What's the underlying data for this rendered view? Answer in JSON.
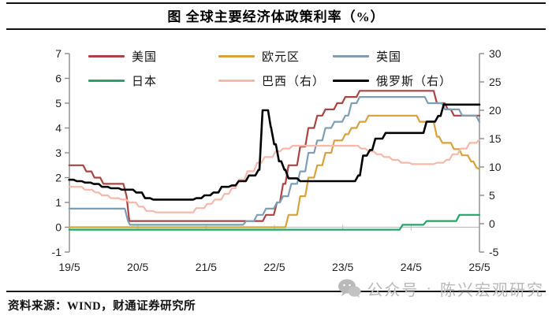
{
  "title": "图 全球主要经济体政策利率（%）",
  "source": "资料来源：WIND，财通证券研究所",
  "watermark": {
    "account_type": "公众号",
    "separator": "·",
    "account_name": "陈兴宏观研究",
    "color": "#b9b9b9"
  },
  "chart_data": {
    "type": "line",
    "title": "全球主要经济体政策利率（%）",
    "legend_position": "top",
    "grid": "zero-line-only",
    "x_axis": {
      "tick_labels": [
        "19/5",
        "20/5",
        "21/5",
        "22/5",
        "23/5",
        "24/5",
        "25/5"
      ],
      "range_years": [
        2019.333,
        2025.333
      ]
    },
    "left_axis": {
      "tick_labels": [
        "7",
        "6",
        "5",
        "4",
        "3",
        "2",
        "1",
        "0",
        "-1"
      ],
      "ticks": [
        7,
        6,
        5,
        4,
        3,
        2,
        1,
        0,
        -1
      ],
      "range": [
        -1,
        7
      ]
    },
    "right_axis": {
      "tick_labels": [
        "30",
        "25",
        "20",
        "15",
        "10",
        "5",
        "0",
        "-5"
      ],
      "ticks": [
        30,
        25,
        20,
        15,
        10,
        5,
        0,
        -5
      ],
      "range": [
        -5,
        30
      ]
    },
    "axis_color": "#8c8c8c",
    "zero_line_color": "#bfbfbf",
    "series": [
      {
        "id": "us",
        "name": "美国",
        "axis": "left",
        "color": "#A94442",
        "points": [
          [
            2019.33,
            2.5
          ],
          [
            2019.58,
            2.25
          ],
          [
            2019.7,
            2.0
          ],
          [
            2019.83,
            1.75
          ],
          [
            2020.17,
            1.25
          ],
          [
            2020.21,
            0.25
          ],
          [
            2022.21,
            0.5
          ],
          [
            2022.37,
            1.0
          ],
          [
            2022.46,
            1.75
          ],
          [
            2022.54,
            2.5
          ],
          [
            2022.71,
            3.25
          ],
          [
            2022.83,
            4.0
          ],
          [
            2022.96,
            4.5
          ],
          [
            2023.08,
            4.75
          ],
          [
            2023.25,
            5.0
          ],
          [
            2023.37,
            5.25
          ],
          [
            2023.58,
            5.5
          ],
          [
            2024.71,
            5.0
          ],
          [
            2024.87,
            4.75
          ],
          [
            2024.96,
            4.5
          ],
          [
            2025.33,
            4.5
          ]
        ]
      },
      {
        "id": "eurozone",
        "name": "欧元区",
        "axis": "left",
        "color": "#D8A13C",
        "points": [
          [
            2019.33,
            0.0
          ],
          [
            2022.54,
            0.5
          ],
          [
            2022.71,
            1.25
          ],
          [
            2022.83,
            2.0
          ],
          [
            2022.96,
            2.5
          ],
          [
            2023.08,
            3.0
          ],
          [
            2023.21,
            3.5
          ],
          [
            2023.37,
            3.75
          ],
          [
            2023.46,
            4.0
          ],
          [
            2023.58,
            4.25
          ],
          [
            2023.71,
            4.5
          ],
          [
            2024.46,
            4.25
          ],
          [
            2024.71,
            3.65
          ],
          [
            2024.79,
            3.4
          ],
          [
            2024.96,
            3.15
          ],
          [
            2025.08,
            2.9
          ],
          [
            2025.21,
            2.65
          ],
          [
            2025.29,
            2.4
          ],
          [
            2025.33,
            2.35
          ]
        ]
      },
      {
        "id": "uk",
        "name": "英国",
        "axis": "left",
        "color": "#7D9EB5",
        "points": [
          [
            2019.33,
            0.75
          ],
          [
            2020.19,
            0.25
          ],
          [
            2020.22,
            0.1
          ],
          [
            2021.92,
            0.25
          ],
          [
            2022.08,
            0.5
          ],
          [
            2022.21,
            0.75
          ],
          [
            2022.37,
            1.0
          ],
          [
            2022.46,
            1.25
          ],
          [
            2022.58,
            1.75
          ],
          [
            2022.71,
            2.25
          ],
          [
            2022.83,
            3.0
          ],
          [
            2022.96,
            3.5
          ],
          [
            2023.08,
            4.0
          ],
          [
            2023.21,
            4.25
          ],
          [
            2023.37,
            4.5
          ],
          [
            2023.46,
            5.0
          ],
          [
            2023.58,
            5.25
          ],
          [
            2024.58,
            5.0
          ],
          [
            2024.83,
            4.75
          ],
          [
            2025.08,
            4.5
          ],
          [
            2025.33,
            4.25
          ]
        ]
      },
      {
        "id": "japan",
        "name": "日本",
        "axis": "left",
        "color": "#22A667",
        "points": [
          [
            2019.33,
            -0.1
          ],
          [
            2024.21,
            0.1
          ],
          [
            2024.56,
            0.25
          ],
          [
            2025.04,
            0.5
          ],
          [
            2025.33,
            0.5
          ]
        ]
      },
      {
        "id": "brazil",
        "name": "巴西（右）",
        "axis": "right",
        "color": "#F5B8AA",
        "points": [
          [
            2019.33,
            6.5
          ],
          [
            2019.56,
            6.0
          ],
          [
            2019.71,
            5.5
          ],
          [
            2019.81,
            5.0
          ],
          [
            2019.94,
            4.5
          ],
          [
            2020.1,
            4.25
          ],
          [
            2020.21,
            3.75
          ],
          [
            2020.35,
            3.0
          ],
          [
            2020.46,
            2.25
          ],
          [
            2020.6,
            2.0
          ],
          [
            2021.19,
            2.75
          ],
          [
            2021.35,
            3.5
          ],
          [
            2021.46,
            4.25
          ],
          [
            2021.6,
            5.25
          ],
          [
            2021.71,
            6.25
          ],
          [
            2021.81,
            7.75
          ],
          [
            2021.94,
            9.25
          ],
          [
            2022.08,
            10.75
          ],
          [
            2022.19,
            11.75
          ],
          [
            2022.35,
            12.75
          ],
          [
            2022.46,
            13.25
          ],
          [
            2022.6,
            13.75
          ],
          [
            2023.6,
            13.25
          ],
          [
            2023.71,
            12.75
          ],
          [
            2023.83,
            12.25
          ],
          [
            2023.94,
            11.75
          ],
          [
            2024.06,
            11.25
          ],
          [
            2024.19,
            10.75
          ],
          [
            2024.35,
            10.5
          ],
          [
            2024.71,
            10.75
          ],
          [
            2024.85,
            11.25
          ],
          [
            2024.94,
            12.25
          ],
          [
            2025.06,
            13.25
          ],
          [
            2025.19,
            14.25
          ],
          [
            2025.33,
            14.75
          ]
        ]
      },
      {
        "id": "russia",
        "name": "俄罗斯（右）",
        "axis": "right",
        "color": "#000000",
        "points": [
          [
            2019.33,
            7.75
          ],
          [
            2019.44,
            7.5
          ],
          [
            2019.56,
            7.25
          ],
          [
            2019.69,
            7.0
          ],
          [
            2019.81,
            6.5
          ],
          [
            2019.94,
            6.25
          ],
          [
            2020.1,
            6.0
          ],
          [
            2020.31,
            5.5
          ],
          [
            2020.44,
            4.5
          ],
          [
            2020.56,
            4.25
          ],
          [
            2021.19,
            4.5
          ],
          [
            2021.31,
            5.0
          ],
          [
            2021.44,
            5.5
          ],
          [
            2021.56,
            6.5
          ],
          [
            2021.71,
            6.75
          ],
          [
            2021.81,
            7.5
          ],
          [
            2021.96,
            8.5
          ],
          [
            2022.1,
            9.5
          ],
          [
            2022.16,
            20.0
          ],
          [
            2022.24,
            20.0
          ],
          [
            2022.28,
            17.0
          ],
          [
            2022.33,
            14.0
          ],
          [
            2022.4,
            11.0
          ],
          [
            2022.48,
            9.5
          ],
          [
            2022.54,
            8.0
          ],
          [
            2022.71,
            7.5
          ],
          [
            2023.56,
            8.5
          ],
          [
            2023.63,
            12.0
          ],
          [
            2023.73,
            13.0
          ],
          [
            2023.81,
            15.0
          ],
          [
            2023.96,
            16.0
          ],
          [
            2024.56,
            18.0
          ],
          [
            2024.73,
            19.0
          ],
          [
            2024.81,
            21.0
          ],
          [
            2025.33,
            21.0
          ]
        ]
      }
    ]
  }
}
